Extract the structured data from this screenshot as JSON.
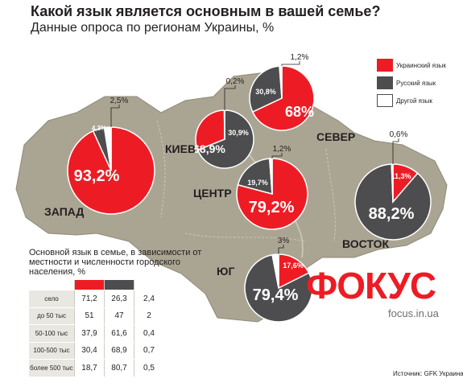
{
  "title": "Какой язык является основным в вашей семье?",
  "subtitle": "Данные опроса по регионам Украины, %",
  "colors": {
    "ukrainian": "#ed1c24",
    "russian": "#4d4d4f",
    "other": "#ffffff",
    "map": "#aaa593"
  },
  "legend": {
    "ukrainian": "Украинский язык",
    "russian": "Русский язык",
    "other": "Другой язык"
  },
  "chart_data": [
    {
      "type": "pie",
      "title": "",
      "series": [
        "Украинский язык",
        "Русский язык",
        "Другой язык"
      ],
      "pies": [
        {
          "region": "ЗАПАД",
          "values": [
            93.2,
            4.3,
            2.5
          ],
          "labels": [
            "93,2%",
            "4,3%",
            "2,5%"
          ]
        },
        {
          "region": "КИЕВ",
          "values": [
            30.9,
            68.9,
            0.2
          ],
          "labels": [
            "30,9%",
            "68,9%",
            "0,2%"
          ]
        },
        {
          "region": "СЕВЕР",
          "values": [
            68,
            30.8,
            1.2
          ],
          "labels": [
            "68%",
            "30,8%",
            "1,2%"
          ]
        },
        {
          "region": "ЦЕНТР",
          "values": [
            79.2,
            19.7,
            1.2
          ],
          "labels": [
            "79,2%",
            "19,7%",
            "1,2%"
          ]
        },
        {
          "region": "ВОСТОК",
          "values": [
            11.3,
            88.2,
            0.6
          ],
          "labels": [
            "11,3%",
            "88,2%",
            "0,6%"
          ]
        },
        {
          "region": "ЮГ",
          "values": [
            17.6,
            79.4,
            3
          ],
          "labels": [
            "17,6%",
            "79,4%",
            "3%"
          ]
        }
      ]
    },
    {
      "type": "table",
      "title": "Основной язык в семье, в зависимости от местности и численности городского населения, %",
      "columns": [
        "Украинский язык",
        "Русский язык",
        "Другой язык"
      ],
      "rows": [
        {
          "label": "село",
          "values": [
            "71,2",
            "26,3",
            "2,4"
          ]
        },
        {
          "label": "до 50 тыс",
          "values": [
            "51",
            "47",
            "2"
          ]
        },
        {
          "label": "50-100 тыс",
          "values": [
            "37,9",
            "61,6",
            "0,4"
          ]
        },
        {
          "label": "100-500 тыс",
          "values": [
            "30,4",
            "68,9",
            "0,7"
          ]
        },
        {
          "label": "более 500 тыс",
          "values": [
            "18,7",
            "80,7",
            "0,5"
          ]
        }
      ]
    }
  ],
  "brand": {
    "name": "ФОКУС",
    "url": "focus.in.ua"
  },
  "source": "Источник: GFK Украина"
}
